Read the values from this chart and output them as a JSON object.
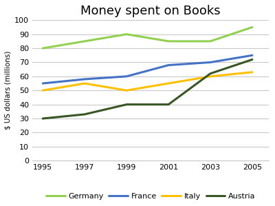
{
  "title": "Money spent on Books",
  "ylabel": "$ US dollars (millions)",
  "years": [
    1995,
    1997,
    1999,
    2001,
    2003,
    2005
  ],
  "series": {
    "Germany": {
      "values": [
        80,
        85,
        90,
        85,
        85,
        95
      ],
      "color": "#92d050",
      "linewidth": 2.2
    },
    "France": {
      "values": [
        55,
        58,
        60,
        68,
        70,
        75
      ],
      "color": "#4472c4",
      "linewidth": 2.2
    },
    "Italy": {
      "values": [
        50,
        55,
        50,
        55,
        60,
        63
      ],
      "color": "#ffc000",
      "linewidth": 2.2
    },
    "Austria": {
      "values": [
        30,
        33,
        40,
        40,
        62,
        72
      ],
      "color": "#375623",
      "linewidth": 2.2
    }
  },
  "ylim": [
    0,
    100
  ],
  "yticks": [
    0,
    10,
    20,
    30,
    40,
    50,
    60,
    70,
    80,
    90,
    100
  ],
  "xticks": [
    1995,
    1997,
    1999,
    2001,
    2003,
    2005
  ],
  "legend_order": [
    "Germany",
    "France",
    "Italy",
    "Austria"
  ],
  "background_color": "#ffffff",
  "title_fontsize": 13,
  "axis_label_fontsize": 7.5,
  "tick_fontsize": 8,
  "legend_fontsize": 8
}
